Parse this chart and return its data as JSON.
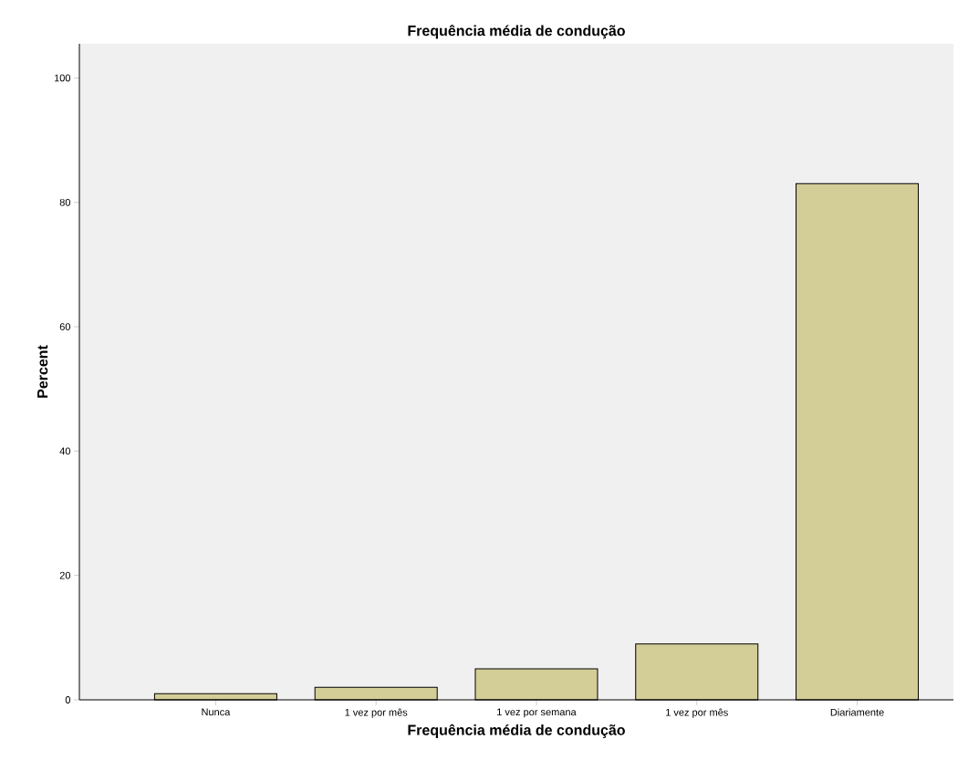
{
  "chart_data": {
    "type": "bar",
    "title": "Frequência média de condução",
    "xlabel": "Frequência média de condução",
    "ylabel": "Percent",
    "categories": [
      "Nunca",
      "1 vez por mês",
      "1 vez por semana",
      "1 vez por mês",
      "Diariamente"
    ],
    "values": [
      1,
      2,
      5,
      9,
      83
    ],
    "color": "#d3ce97",
    "ylim": [
      0,
      105.5
    ],
    "yticks": [
      0,
      20,
      40,
      60,
      80,
      100
    ],
    "grid": false
  }
}
